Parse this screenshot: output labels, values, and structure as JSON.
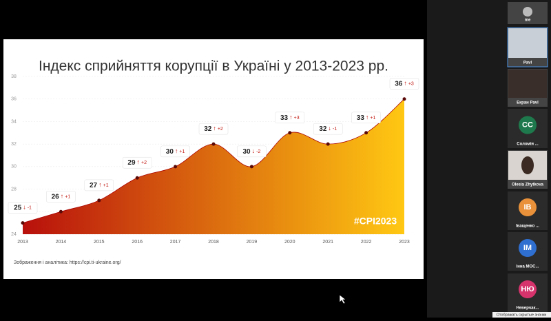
{
  "chart_data": {
    "type": "area",
    "title": "Індекс сприйняття корупції в Україні у 2013-2023 рр.",
    "x": [
      2013,
      2014,
      2015,
      2016,
      2017,
      2018,
      2019,
      2020,
      2021,
      2022,
      2023
    ],
    "values": [
      25,
      26,
      27,
      29,
      30,
      32,
      30,
      33,
      32,
      33,
      36
    ],
    "changes": [
      "-1",
      "+1",
      "+1",
      "+2",
      "+1",
      "+2",
      "-2",
      "+3",
      "-1",
      "+1",
      "+3"
    ],
    "xlim": [
      2013,
      2023
    ],
    "ylim": [
      24,
      38
    ],
    "yticks": [
      24,
      26,
      28,
      30,
      32,
      34,
      36,
      38
    ],
    "grid": true,
    "colors": [
      "#b8100c",
      "#ffc812"
    ],
    "watermark": "#CPI2023",
    "source": "Зображення і аналітика: https://cpi.ti-ukraine.org/"
  },
  "participants": [
    {
      "name": "me"
    },
    {
      "name": "Pavl"
    },
    {
      "name": "Екран Pavl"
    },
    {
      "initials": "CC",
      "name": "Соломія ...",
      "color": "#1e7a4c"
    },
    {
      "name": "Olesia Zhytkova"
    },
    {
      "initials": "IB",
      "name": "Іващенко ...",
      "color": "#e8913a"
    },
    {
      "initials": "IM",
      "name": "Інна МОС...",
      "color": "#2f6fd0"
    },
    {
      "initials": "НЮ",
      "name": "Неверчак...",
      "color": "#d6336c"
    }
  ],
  "tooltip": "Отображать скрытые значки"
}
